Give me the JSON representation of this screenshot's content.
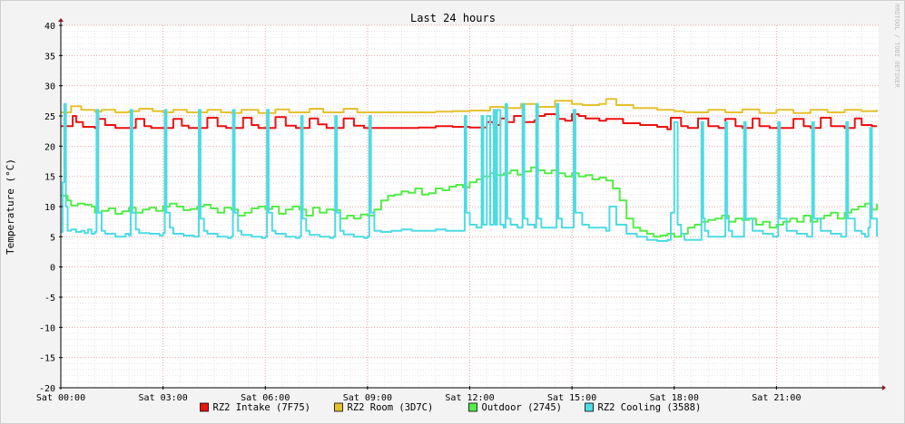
{
  "chart_data": {
    "type": "line",
    "title": "Last 24 hours",
    "ylabel": "Temperature (°C)",
    "xlabel": "",
    "watermark": "RRDTOOL / TOBI OETIKER",
    "ylim": [
      -20,
      40
    ],
    "xlim": [
      0,
      24
    ],
    "x_unit": "hours since Sat 00:00",
    "yticks": [
      40,
      35,
      30,
      25,
      20,
      15,
      10,
      5,
      0,
      -5,
      -10,
      -15,
      -20
    ],
    "xticks": [
      {
        "x": 0,
        "label": "Sat 00:00"
      },
      {
        "x": 3,
        "label": "Sat 03:00"
      },
      {
        "x": 6,
        "label": "Sat 06:00"
      },
      {
        "x": 9,
        "label": "Sat 09:00"
      },
      {
        "x": 12,
        "label": "Sat 12:00"
      },
      {
        "x": 15,
        "label": "Sat 15:00"
      },
      {
        "x": 18,
        "label": "Sat 18:00"
      },
      {
        "x": 21,
        "label": "Sat 21:00"
      }
    ],
    "grid": true,
    "legend_position": "bottom",
    "series": [
      {
        "name": "RZ2 Intake (7F75)",
        "color": "#ee1111",
        "x": [
          0,
          0.2,
          0.35,
          0.45,
          0.65,
          1.0,
          1.1,
          1.3,
          1.6,
          2.0,
          2.2,
          2.45,
          2.65,
          3.0,
          3.3,
          3.55,
          3.75,
          4.0,
          4.3,
          4.6,
          4.85,
          5.0,
          5.35,
          5.6,
          5.8,
          6.0,
          6.3,
          6.6,
          6.9,
          7.1,
          7.3,
          7.55,
          7.8,
          8.0,
          8.3,
          8.6,
          8.9,
          9.5,
          10.0,
          10.5,
          11.0,
          11.5,
          12.0,
          12.3,
          12.5,
          12.7,
          12.9,
          13.1,
          13.3,
          13.6,
          13.9,
          14.0,
          14.2,
          14.6,
          14.8,
          15.0,
          15.2,
          15.4,
          15.8,
          16.0,
          16.5,
          17.0,
          17.5,
          17.8,
          17.9,
          18.2,
          18.4,
          18.7,
          19.0,
          19.3,
          19.5,
          19.8,
          20.0,
          20.3,
          20.5,
          20.8,
          21.2,
          21.5,
          21.8,
          22.0,
          22.3,
          22.6,
          23.0,
          23.3,
          23.5,
          23.8,
          23.95
        ],
        "values": [
          23.3,
          23.3,
          25.0,
          24.0,
          23.2,
          23.0,
          24.5,
          23.5,
          23.0,
          23.0,
          24.5,
          23.3,
          23.0,
          23.0,
          24.5,
          23.4,
          23.0,
          23.0,
          24.7,
          23.3,
          23.0,
          23.0,
          24.7,
          23.5,
          23.0,
          23.0,
          24.8,
          23.4,
          23.0,
          23.0,
          24.6,
          23.6,
          23.0,
          23.0,
          24.6,
          23.4,
          23.0,
          23.0,
          23.0,
          23.1,
          23.3,
          23.2,
          23.1,
          23.1,
          24.0,
          23.5,
          24.6,
          24.0,
          25.0,
          24.0,
          24.3,
          25.0,
          25.3,
          24.5,
          24.2,
          25.3,
          25.0,
          24.6,
          24.2,
          24.5,
          23.8,
          23.5,
          23.2,
          22.8,
          24.7,
          23.3,
          23.0,
          24.6,
          23.3,
          23.0,
          24.5,
          23.3,
          23.0,
          24.6,
          23.3,
          23.0,
          23.0,
          24.5,
          23.3,
          23.0,
          24.7,
          23.3,
          23.0,
          24.6,
          23.5,
          23.3,
          23.3
        ]
      },
      {
        "name": "RZ2 Room (3D7C)",
        "color": "#e6c12e",
        "x": [
          0,
          0.3,
          0.6,
          1.0,
          1.2,
          1.6,
          2.0,
          2.3,
          2.7,
          3.0,
          3.3,
          3.7,
          4.0,
          4.3,
          4.7,
          5.0,
          5.3,
          5.8,
          6.3,
          6.7,
          7.3,
          7.7,
          8.3,
          8.7,
          9.0,
          9.5,
          10.0,
          10.5,
          11.0,
          11.5,
          12.0,
          12.3,
          12.6,
          13.0,
          13.5,
          14.0,
          14.5,
          15.0,
          15.3,
          15.8,
          16.0,
          16.3,
          16.8,
          17.5,
          18.0,
          18.3,
          19.0,
          19.5,
          20.0,
          20.5,
          21.0,
          21.5,
          22.0,
          22.5,
          23.0,
          23.5,
          23.95
        ],
        "values": [
          25.6,
          26.6,
          26.0,
          25.7,
          26.0,
          25.6,
          25.8,
          26.2,
          25.8,
          25.6,
          26.0,
          25.6,
          25.6,
          26.0,
          25.6,
          25.5,
          26.0,
          25.5,
          26.1,
          25.6,
          26.2,
          25.6,
          26.2,
          25.6,
          25.6,
          25.6,
          25.6,
          25.6,
          25.7,
          25.8,
          25.9,
          25.9,
          26.5,
          26.3,
          27.0,
          26.5,
          27.5,
          27.0,
          26.8,
          27.0,
          27.8,
          26.8,
          26.3,
          26.0,
          25.8,
          25.6,
          26.0,
          25.6,
          26.1,
          25.5,
          26.0,
          25.5,
          26.0,
          25.6,
          26.0,
          25.8,
          26.0
        ]
      },
      {
        "name": "Outdoor (2745)",
        "color": "#54ec48",
        "x": [
          0,
          0.2,
          0.3,
          0.5,
          0.7,
          0.9,
          1.0,
          1.2,
          1.4,
          1.6,
          1.8,
          2.0,
          2.2,
          2.4,
          2.6,
          2.8,
          3.0,
          3.2,
          3.4,
          3.6,
          3.8,
          4.0,
          4.2,
          4.4,
          4.6,
          4.8,
          5.0,
          5.2,
          5.4,
          5.6,
          5.8,
          6.0,
          6.2,
          6.4,
          6.6,
          6.8,
          7.0,
          7.2,
          7.4,
          7.6,
          7.8,
          8.0,
          8.2,
          8.4,
          8.6,
          8.8,
          9.0,
          9.2,
          9.4,
          9.6,
          9.8,
          10.0,
          10.2,
          10.4,
          10.6,
          10.8,
          11.0,
          11.2,
          11.4,
          11.6,
          11.8,
          12.0,
          12.2,
          12.4,
          12.6,
          12.8,
          13.0,
          13.2,
          13.4,
          13.6,
          13.8,
          14.0,
          14.2,
          14.4,
          14.6,
          14.8,
          15.0,
          15.2,
          15.4,
          15.6,
          15.8,
          16.0,
          16.2,
          16.4,
          16.6,
          16.8,
          17.0,
          17.2,
          17.4,
          17.6,
          17.8,
          18.0,
          18.2,
          18.4,
          18.6,
          18.8,
          19.0,
          19.2,
          19.4,
          19.6,
          19.8,
          20.0,
          20.2,
          20.4,
          20.6,
          20.8,
          21.0,
          21.2,
          21.4,
          21.6,
          21.8,
          22.0,
          22.2,
          22.4,
          22.6,
          22.8,
          23.0,
          23.2,
          23.4,
          23.6,
          23.8,
          23.95
        ],
        "values": [
          11.8,
          11.0,
          10.2,
          10.5,
          10.3,
          10.0,
          9.0,
          9.3,
          9.7,
          8.8,
          9.2,
          9.8,
          9.0,
          9.5,
          9.8,
          9.3,
          10.0,
          10.5,
          10.0,
          9.4,
          9.6,
          10.0,
          10.3,
          9.7,
          9.0,
          9.8,
          9.5,
          8.5,
          9.0,
          9.7,
          10.0,
          9.6,
          10.0,
          8.8,
          9.5,
          10.0,
          9.5,
          8.5,
          9.8,
          9.0,
          9.5,
          9.4,
          8.0,
          8.5,
          8.0,
          8.7,
          8.5,
          9.5,
          11.0,
          11.8,
          12.0,
          12.5,
          12.3,
          13.0,
          12.0,
          12.2,
          13.0,
          12.7,
          13.3,
          13.6,
          13.2,
          14.0,
          14.5,
          15.0,
          15.5,
          15.2,
          15.5,
          16.0,
          15.3,
          15.8,
          16.5,
          16.0,
          15.5,
          16.0,
          15.5,
          15.0,
          15.5,
          15.0,
          15.2,
          14.5,
          14.8,
          14.3,
          13.0,
          11.0,
          8.0,
          6.5,
          6.0,
          5.5,
          5.0,
          5.2,
          5.5,
          5.0,
          5.5,
          6.5,
          7.0,
          7.5,
          7.8,
          8.0,
          8.5,
          7.5,
          8.0,
          7.8,
          8.0,
          7.0,
          7.5,
          6.5,
          7.0,
          7.5,
          8.0,
          7.5,
          8.5,
          7.5,
          8.0,
          8.5,
          9.0,
          8.0,
          9.0,
          9.5,
          10.0,
          10.5,
          9.5,
          10.5
        ]
      },
      {
        "name": "RZ2 Cooling (3588)",
        "color": "#4edbe4",
        "x": [
          0,
          0.05,
          0.1,
          0.15,
          0.2,
          0.3,
          0.45,
          0.6,
          0.7,
          0.8,
          0.9,
          1.0,
          1.05,
          1.1,
          1.2,
          1.3,
          1.6,
          1.9,
          2.0,
          2.05,
          2.1,
          2.2,
          2.3,
          2.6,
          2.9,
          3.0,
          3.05,
          3.1,
          3.2,
          3.3,
          3.6,
          3.9,
          4.0,
          4.05,
          4.1,
          4.2,
          4.3,
          4.6,
          4.9,
          5.0,
          5.05,
          5.1,
          5.2,
          5.3,
          5.6,
          5.9,
          6.0,
          6.05,
          6.1,
          6.2,
          6.3,
          6.6,
          6.9,
          7.0,
          7.05,
          7.1,
          7.2,
          7.3,
          7.6,
          7.9,
          8.0,
          8.05,
          8.1,
          8.2,
          8.3,
          8.6,
          8.9,
          9.0,
          9.05,
          9.1,
          9.2,
          9.4,
          9.7,
          10.0,
          10.3,
          10.7,
          11.0,
          11.3,
          11.6,
          11.8,
          11.85,
          11.9,
          12.0,
          12.2,
          12.3,
          12.35,
          12.4,
          12.5,
          12.6,
          12.7,
          12.75,
          12.8,
          12.9,
          13.0,
          13.05,
          13.1,
          13.2,
          13.4,
          13.5,
          13.55,
          13.6,
          13.7,
          13.9,
          13.95,
          14.0,
          14.1,
          14.3,
          14.5,
          14.55,
          14.6,
          14.7,
          14.9,
          15.0,
          15.05,
          15.1,
          15.3,
          15.5,
          15.6,
          15.8,
          16.0,
          16.1,
          16.3,
          16.6,
          16.9,
          17.2,
          17.5,
          17.8,
          17.9,
          18.0,
          18.1,
          18.2,
          18.3,
          18.5,
          18.7,
          18.8,
          18.85,
          18.9,
          19.0,
          19.2,
          19.4,
          19.5,
          19.55,
          19.6,
          19.7,
          19.9,
          20.0,
          20.05,
          20.1,
          20.3,
          20.6,
          20.9,
          21.0,
          21.05,
          21.1,
          21.3,
          21.6,
          21.9,
          22.0,
          22.05,
          22.1,
          22.3,
          22.6,
          22.9,
          23.0,
          23.05,
          23.1,
          23.3,
          23.5,
          23.6,
          23.7,
          23.75,
          23.8,
          23.95
        ],
        "values": [
          5.8,
          14.0,
          27.0,
          10.0,
          6.0,
          6.2,
          5.8,
          6.0,
          5.6,
          6.2,
          5.5,
          5.8,
          26.0,
          9.0,
          6.0,
          5.5,
          5.0,
          5.5,
          5.2,
          26.0,
          9.0,
          6.2,
          5.6,
          5.5,
          5.2,
          5.6,
          26.0,
          9.0,
          6.5,
          5.5,
          5.2,
          5.0,
          5.0,
          26.0,
          8.0,
          6.0,
          5.5,
          5.0,
          4.8,
          5.0,
          26.0,
          9.0,
          6.0,
          5.3,
          5.0,
          4.8,
          5.0,
          26.0,
          9.0,
          6.0,
          5.5,
          5.0,
          4.8,
          5.0,
          25.0,
          8.0,
          6.0,
          5.3,
          5.0,
          4.8,
          5.0,
          25.0,
          9.0,
          6.0,
          5.4,
          5.0,
          4.8,
          5.0,
          25.0,
          9.0,
          6.0,
          5.8,
          6.0,
          6.2,
          6.0,
          6.0,
          6.2,
          6.0,
          6.0,
          6.0,
          25.0,
          9.0,
          7.0,
          6.5,
          6.5,
          25.0,
          7.0,
          25.0,
          7.0,
          26.0,
          7.0,
          26.0,
          7.0,
          6.5,
          27.0,
          8.0,
          7.0,
          6.5,
          6.5,
          27.0,
          8.0,
          7.0,
          6.5,
          27.0,
          8.0,
          6.5,
          6.5,
          6.5,
          27.0,
          8.0,
          6.5,
          6.5,
          6.5,
          26.0,
          9.0,
          7.0,
          6.5,
          6.5,
          6.5,
          6.0,
          10.0,
          7.0,
          5.5,
          5.0,
          4.5,
          4.3,
          4.5,
          9.0,
          24.0,
          7.0,
          5.5,
          4.5,
          4.5,
          4.5,
          24.0,
          8.0,
          6.0,
          5.0,
          5.0,
          5.0,
          24.0,
          8.0,
          6.0,
          5.0,
          5.0,
          5.0,
          24.0,
          8.0,
          6.0,
          5.5,
          5.0,
          5.0,
          24.0,
          8.0,
          6.0,
          5.5,
          5.0,
          5.0,
          24.0,
          8.0,
          6.0,
          5.5,
          5.0,
          5.0,
          24.0,
          8.0,
          6.0,
          5.5,
          5.0,
          6.5,
          23.0,
          8.0,
          5.0
        ]
      }
    ]
  }
}
